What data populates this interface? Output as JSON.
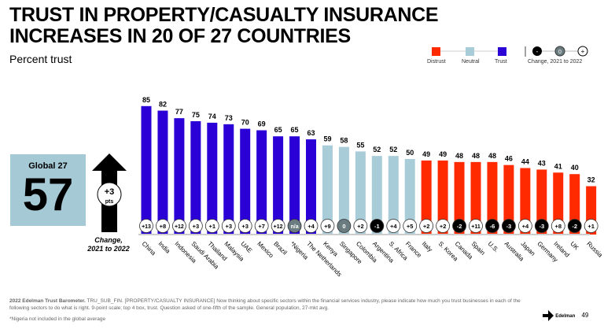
{
  "header": {
    "title_line1": "TRUST IN PROPERTY/CASUALTY INSURANCE",
    "title_line2": "INCREASES IN 20 OF 27 COUNTRIES",
    "subtitle": "Percent trust"
  },
  "legend": {
    "distrust": "Distrust",
    "neutral": "Neutral",
    "trust": "Trust",
    "change": "Change, 2021 to 2022",
    "neg_symbol": "-",
    "zero_symbol": "0",
    "pos_symbol": "+"
  },
  "colors": {
    "trust": "#2b00d6",
    "neutral": "#a8ccd8",
    "distrust": "#ff2a00",
    "negative_circle": "#000000",
    "zero_circle": "#6b7c80"
  },
  "global": {
    "label": "Global 27",
    "value": "57",
    "change": "+3",
    "change_unit": "pts",
    "change_caption_1": "Change,",
    "change_caption_2": "2021 to 2022"
  },
  "chart_data": {
    "type": "bar",
    "categories": [
      "China",
      "India",
      "Indonesia",
      "Saudi Arabia",
      "Thailand",
      "Malaysia",
      "UAE",
      "Mexico",
      "Brazil",
      "*Nigeria",
      "The Netherlands",
      "Kenya",
      "Singapore",
      "Colombia",
      "Argentina",
      "S. Africa",
      "France",
      "Italy",
      "S. Korea",
      "Canada",
      "Spain",
      "U.S.",
      "Australia",
      "Japan",
      "Germany",
      "Ireland",
      "UK",
      "Russia"
    ],
    "values": [
      85,
      82,
      77,
      75,
      74,
      73,
      70,
      69,
      65,
      65,
      63,
      59,
      58,
      55,
      52,
      52,
      50,
      49,
      49,
      48,
      48,
      48,
      46,
      44,
      43,
      41,
      40,
      32
    ],
    "levels": [
      "trust",
      "trust",
      "trust",
      "trust",
      "trust",
      "trust",
      "trust",
      "trust",
      "trust",
      "trust",
      "trust",
      "neutral",
      "neutral",
      "neutral",
      "neutral",
      "neutral",
      "neutral",
      "distrust",
      "distrust",
      "distrust",
      "distrust",
      "distrust",
      "distrust",
      "distrust",
      "distrust",
      "distrust",
      "distrust",
      "distrust"
    ],
    "changes": [
      "+13",
      "+8",
      "+12",
      "+3",
      "+1",
      "+3",
      "+3",
      "+7",
      "+12",
      "n/a",
      "+4",
      "+9",
      "0",
      "+2",
      "-1",
      "+4",
      "+5",
      "+2",
      "+2",
      "-2",
      "+11",
      "-6",
      "-3",
      "+4",
      "-3",
      "+8",
      "-2",
      "+1"
    ],
    "ylim": [
      0,
      100
    ],
    "grid": false,
    "legend_position": "top-right"
  },
  "footer": {
    "source_bold": "2022 Edelman Trust Barometer.",
    "source": " TRU_SUB_FIN. [PROPERTY/CASUALTY INSURANCE] Now thinking about specific sectors within the financial services industry, please indicate how much you trust businesses in each of the following sectors to do what is right. 9-point scale; top 4 box, trust. Question asked of one-fifth of the sample. General population, 27-mkt avg.",
    "note": "*Nigeria not included in the global average",
    "brand": "Edelman",
    "page": "49"
  }
}
